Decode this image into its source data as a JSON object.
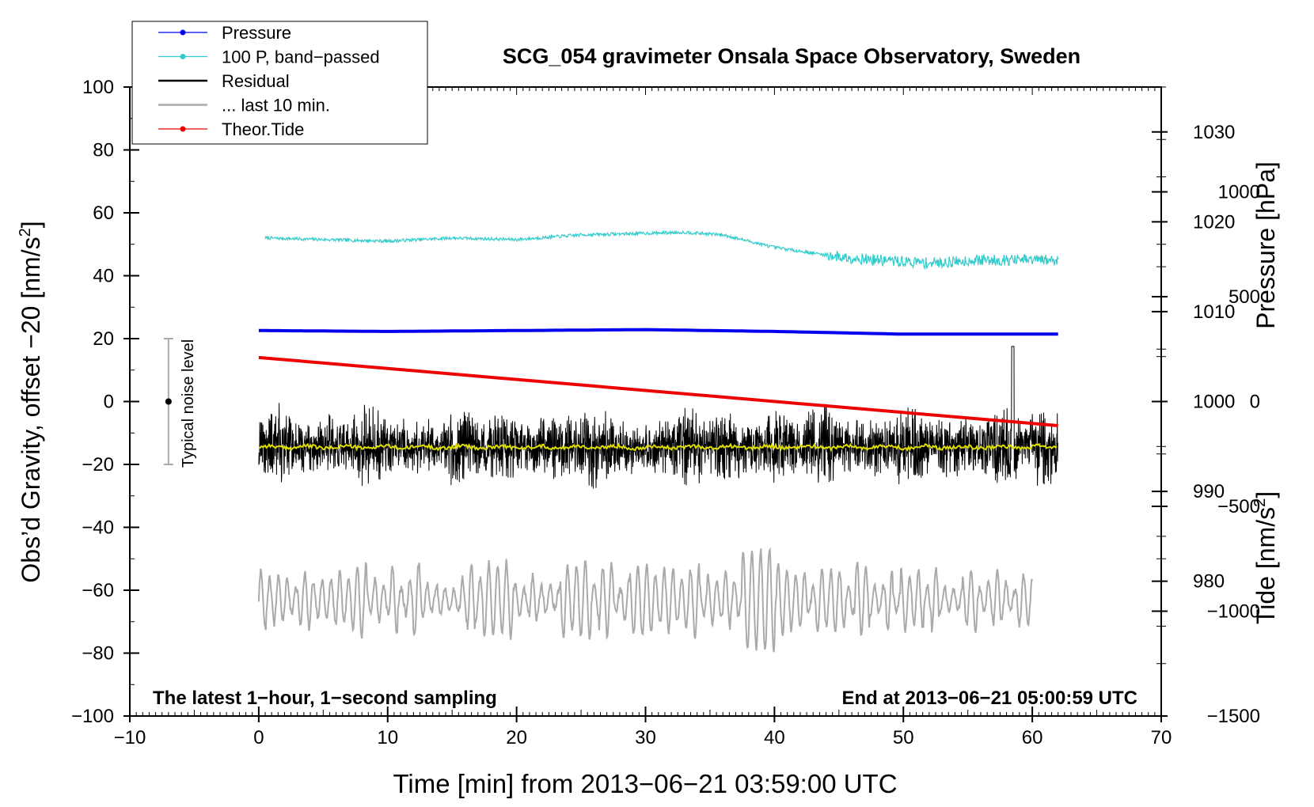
{
  "chart_data": {
    "type": "line",
    "title": "SCG_054 gravimeter Onsala Space Observatory, Sweden",
    "xlabel": "Time [min] from 2013−06−21 03:59:00 UTC",
    "ylabel_left_main": "Obs’d Gravity, offset −20 [nm/s",
    "ylabel_left_sup": "2",
    "ylabel_left_end": "]",
    "ylabel_right_pressure": "Pressure [hPa]",
    "ylabel_right_tide_main": "Tide [nm/s",
    "ylabel_right_tide_sup": "2",
    "ylabel_right_tide_end": "]",
    "xlim": [
      -10,
      70
    ],
    "ylim": [
      -100,
      100
    ],
    "pressure_lim": [
      965,
      1035
    ],
    "tide_lim": [
      -1500,
      1500
    ],
    "xticks": [
      -10,
      0,
      10,
      20,
      30,
      40,
      50,
      60,
      70
    ],
    "xtick_labels": [
      "−10",
      "0",
      "10",
      "20",
      "30",
      "40",
      "50",
      "60",
      "70"
    ],
    "yticks": [
      100,
      80,
      60,
      40,
      20,
      0,
      -20,
      -40,
      -60,
      -80,
      -100
    ],
    "ytick_labels": [
      "100",
      "80",
      "60",
      "40",
      "20",
      "0",
      "−20",
      "−40",
      "−60",
      "−80",
      "−100"
    ],
    "pressure_ticks": [
      1030,
      1020,
      1010,
      1000,
      990,
      980
    ],
    "pressure_tick_labels": [
      "1030",
      "1020",
      "1010",
      "1000",
      "990",
      "980"
    ],
    "tide_ticks": [
      1000,
      500,
      0,
      -500,
      -1000,
      -1500
    ],
    "tide_tick_labels": [
      "1000",
      "500",
      "0",
      "−500",
      "−1000",
      "−1500"
    ],
    "legend_position": "top-left",
    "legend": [
      {
        "label": "Pressure",
        "color": "#0000ee",
        "style": "line-dot"
      },
      {
        "label": "100 P, band−passed",
        "color": "#33cccc",
        "style": "line-dot"
      },
      {
        "label": "Residual",
        "color": "#000000",
        "style": "line"
      },
      {
        "label": "... last 10 min.",
        "color": "#aaaaaa",
        "style": "line"
      },
      {
        "label": "Theor.Tide",
        "color": "#ee0000",
        "style": "line-dot"
      }
    ],
    "annotations": {
      "noise_label": "Typical noise level",
      "noise_bar": {
        "x": -7,
        "center": 0,
        "low": -20,
        "high": 20
      },
      "bottom_left": "The latest 1−hour, 1−second sampling",
      "bottom_right": "End at 2013−06−21 05:00:59 UTC"
    },
    "series": [
      {
        "name": "Pressure",
        "color": "#0000ee",
        "axis": "pressure",
        "x": [
          0,
          10,
          20,
          30,
          40,
          50,
          62
        ],
        "values": [
          1007.9,
          1007.8,
          1007.9,
          1008.0,
          1007.8,
          1007.5,
          1007.5
        ]
      },
      {
        "name": "100 P, band−passed",
        "color": "#33cccc",
        "axis": "left",
        "x": [
          0.5,
          5,
          10,
          15,
          20,
          25,
          30,
          33,
          36,
          40,
          45,
          48,
          52,
          56,
          60,
          62
        ],
        "values": [
          52,
          51.5,
          51,
          52,
          51.5,
          53,
          53.5,
          53.8,
          53,
          49,
          46,
          45,
          44,
          45,
          45,
          45
        ]
      },
      {
        "name": "Residual",
        "color": "#000000",
        "axis": "left",
        "x_range": [
          0,
          62
        ],
        "mean": -14.5,
        "amplitude": 13
      },
      {
        "name": "Residual (smoothed)",
        "color": "#dddd00",
        "axis": "left",
        "x_range": [
          0,
          62
        ],
        "mean": -14.5
      },
      {
        "name": "... last 10 min.",
        "color": "#aaaaaa",
        "axis": "left",
        "x_range": [
          0,
          60
        ],
        "mean": -63,
        "amplitude": 9
      },
      {
        "name": "Theor.Tide",
        "color": "#ee0000",
        "axis": "tide",
        "x": [
          0,
          62
        ],
        "values": [
          210,
          -115
        ]
      }
    ]
  }
}
